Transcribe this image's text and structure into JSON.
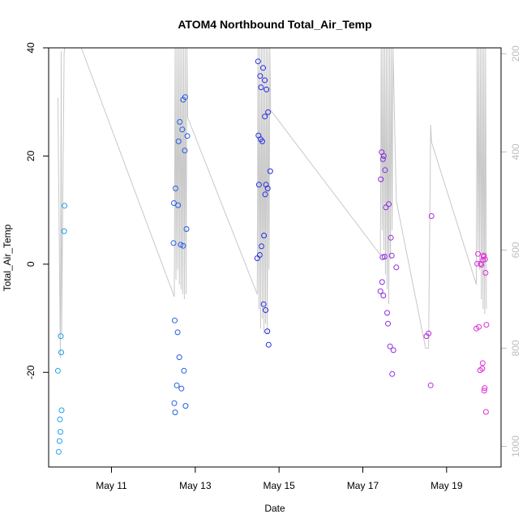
{
  "chart_data": {
    "type": "scatter",
    "title": "ATOM4 Northbound Total_Air_Temp",
    "xlabel": "Date",
    "ylabel": "Total_Air_Temp",
    "xlim": [
      9.5,
      20.3
    ],
    "ylim": [
      -37.5,
      40
    ],
    "y2lim": [
      1042,
      188
    ],
    "x_ticks": [
      {
        "value": 11,
        "label": "May 11"
      },
      {
        "value": 13,
        "label": "May 13"
      },
      {
        "value": 15,
        "label": "May 15"
      },
      {
        "value": 17,
        "label": "May 17"
      },
      {
        "value": 19,
        "label": "May 19"
      }
    ],
    "y_ticks": [
      {
        "value": -20,
        "label": "-20"
      },
      {
        "value": 0,
        "label": "0"
      },
      {
        "value": 20,
        "label": "20"
      },
      {
        "value": 40,
        "label": "40"
      }
    ],
    "y2_ticks": [
      {
        "value": 200,
        "label": "200"
      },
      {
        "value": 400,
        "label": "400"
      },
      {
        "value": 600,
        "label": "600"
      },
      {
        "value": 800,
        "label": "800"
      },
      {
        "value": 1000,
        "label": "1000"
      }
    ],
    "point_color_start": "#1aa3ea",
    "point_color_mid": "#2a2ae0",
    "point_color_end": "#e030d8",
    "line_color": "#c8c8c8",
    "points": [
      [
        9.72,
        -19.7
      ],
      [
        9.74,
        -34.7
      ],
      [
        9.76,
        -32.7
      ],
      [
        9.77,
        -28.7
      ],
      [
        9.78,
        -31.0
      ],
      [
        9.79,
        -13.3
      ],
      [
        9.8,
        -16.3
      ],
      [
        9.81,
        -27.0
      ],
      [
        9.87,
        6.1
      ],
      [
        9.88,
        10.8
      ],
      [
        12.48,
        3.9
      ],
      [
        12.49,
        11.3
      ],
      [
        12.5,
        -25.7
      ],
      [
        12.51,
        -10.4
      ],
      [
        12.52,
        -27.4
      ],
      [
        12.53,
        14.0
      ],
      [
        12.56,
        -22.4
      ],
      [
        12.58,
        -12.6
      ],
      [
        12.59,
        10.9
      ],
      [
        12.6,
        22.7
      ],
      [
        12.62,
        -17.2
      ],
      [
        12.63,
        26.3
      ],
      [
        12.65,
        3.6
      ],
      [
        12.67,
        -23.0
      ],
      [
        12.69,
        24.9
      ],
      [
        12.71,
        3.4
      ],
      [
        12.71,
        30.4
      ],
      [
        12.73,
        -19.7
      ],
      [
        12.75,
        21.0
      ],
      [
        12.76,
        30.9
      ],
      [
        12.77,
        -26.2
      ],
      [
        12.79,
        6.5
      ],
      [
        12.81,
        23.7
      ],
      [
        14.48,
        1.1
      ],
      [
        14.5,
        37.5
      ],
      [
        14.51,
        23.8
      ],
      [
        14.52,
        14.7
      ],
      [
        14.54,
        1.7
      ],
      [
        14.55,
        34.8
      ],
      [
        14.56,
        23.1
      ],
      [
        14.57,
        32.7
      ],
      [
        14.58,
        3.3
      ],
      [
        14.6,
        22.7
      ],
      [
        14.62,
        36.3
      ],
      [
        14.63,
        -7.4
      ],
      [
        14.64,
        5.3
      ],
      [
        14.66,
        27.3
      ],
      [
        14.66,
        34.0
      ],
      [
        14.67,
        12.9
      ],
      [
        14.68,
        -8.5
      ],
      [
        14.69,
        14.7
      ],
      [
        14.7,
        32.3
      ],
      [
        14.72,
        -12.4
      ],
      [
        14.73,
        14.0
      ],
      [
        14.74,
        28.1
      ],
      [
        14.75,
        -14.9
      ],
      [
        14.79,
        17.2
      ],
      [
        17.42,
        -5.0
      ],
      [
        17.43,
        15.7
      ],
      [
        17.45,
        20.7
      ],
      [
        17.46,
        -3.3
      ],
      [
        17.47,
        1.3
      ],
      [
        17.48,
        19.4
      ],
      [
        17.49,
        -5.8
      ],
      [
        17.5,
        20.0
      ],
      [
        17.52,
        1.4
      ],
      [
        17.53,
        17.4
      ],
      [
        17.55,
        10.5
      ],
      [
        17.58,
        -9.0
      ],
      [
        17.6,
        -11.0
      ],
      [
        17.62,
        11.1
      ],
      [
        17.65,
        -15.2
      ],
      [
        17.67,
        4.9
      ],
      [
        17.69,
        1.6
      ],
      [
        17.7,
        -20.3
      ],
      [
        17.73,
        -15.9
      ],
      [
        17.8,
        -0.6
      ],
      [
        18.52,
        -13.3
      ],
      [
        18.57,
        -12.8
      ],
      [
        18.62,
        -22.4
      ],
      [
        18.64,
        8.9
      ],
      [
        19.71,
        -11.9
      ],
      [
        19.73,
        0.1
      ],
      [
        19.75,
        1.9
      ],
      [
        19.77,
        -11.6
      ],
      [
        19.8,
        -19.6
      ],
      [
        19.81,
        0.1
      ],
      [
        19.83,
        -0.1
      ],
      [
        19.85,
        -19.3
      ],
      [
        19.86,
        -18.3
      ],
      [
        19.87,
        0.8
      ],
      [
        19.88,
        1.4
      ],
      [
        19.89,
        1.6
      ],
      [
        19.9,
        -23.4
      ],
      [
        19.91,
        -22.9
      ],
      [
        19.92,
        0.9
      ],
      [
        19.93,
        -1.6
      ],
      [
        19.94,
        -27.3
      ],
      [
        19.95,
        -11.2
      ]
    ],
    "pressure_lines": [
      [
        [
          9.72,
          290
        ],
        [
          9.78,
          820
        ],
        [
          9.8,
          195
        ],
        [
          9.81,
          770
        ],
        [
          9.87,
          200
        ],
        [
          9.88,
          188
        ],
        [
          9.92,
          188
        ]
      ],
      [
        [
          10.28,
          188
        ],
        [
          12.5,
          695
        ]
      ],
      [
        [
          12.5,
          695
        ],
        [
          12.52,
          188
        ],
        [
          12.54,
          660
        ],
        [
          12.56,
          188
        ],
        [
          12.58,
          640
        ],
        [
          12.6,
          188
        ],
        [
          12.62,
          670
        ],
        [
          12.64,
          188
        ],
        [
          12.66,
          680
        ],
        [
          12.68,
          188
        ],
        [
          12.7,
          690
        ],
        [
          12.72,
          188
        ],
        [
          12.74,
          700
        ],
        [
          12.76,
          188
        ],
        [
          12.78,
          690
        ],
        [
          12.8,
          188
        ],
        [
          12.82,
          330
        ]
      ],
      [
        [
          12.82,
          330
        ],
        [
          14.48,
          690
        ]
      ],
      [
        [
          14.48,
          690
        ],
        [
          14.5,
          188
        ],
        [
          14.52,
          720
        ],
        [
          14.54,
          188
        ],
        [
          14.56,
          760
        ],
        [
          14.58,
          188
        ],
        [
          14.6,
          740
        ],
        [
          14.62,
          188
        ],
        [
          14.64,
          770
        ],
        [
          14.66,
          188
        ],
        [
          14.68,
          750
        ],
        [
          14.7,
          188
        ],
        [
          14.72,
          770
        ],
        [
          14.74,
          188
        ],
        [
          14.76,
          640
        ],
        [
          14.78,
          188
        ],
        [
          14.8,
          315
        ]
      ],
      [
        [
          14.8,
          315
        ],
        [
          17.42,
          610
        ]
      ],
      [
        [
          17.42,
          610
        ],
        [
          17.44,
          188
        ],
        [
          17.46,
          560
        ],
        [
          17.48,
          188
        ],
        [
          17.5,
          600
        ],
        [
          17.52,
          188
        ],
        [
          17.54,
          650
        ],
        [
          17.56,
          188
        ],
        [
          17.58,
          680
        ],
        [
          17.6,
          188
        ],
        [
          17.62,
          710
        ],
        [
          17.64,
          188
        ],
        [
          17.66,
          620
        ],
        [
          17.68,
          188
        ],
        [
          17.7,
          560
        ],
        [
          17.72,
          188
        ],
        [
          17.8,
          500
        ]
      ],
      [
        [
          17.8,
          500
        ],
        [
          18.5,
          800
        ],
        [
          18.57,
          800
        ],
        [
          18.62,
          345
        ],
        [
          18.64,
          380
        ],
        [
          19.71,
          670
        ]
      ],
      [
        [
          19.71,
          670
        ],
        [
          19.73,
          188
        ],
        [
          19.75,
          600
        ],
        [
          19.77,
          188
        ],
        [
          19.79,
          640
        ],
        [
          19.81,
          188
        ],
        [
          19.83,
          700
        ],
        [
          19.85,
          188
        ],
        [
          19.87,
          720
        ],
        [
          19.89,
          188
        ],
        [
          19.91,
          730
        ],
        [
          19.93,
          188
        ],
        [
          19.95,
          720
        ]
      ]
    ]
  }
}
